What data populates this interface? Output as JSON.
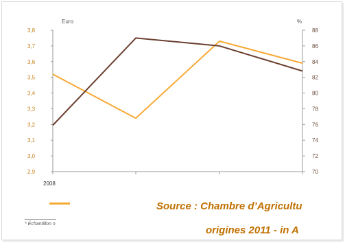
{
  "chart_data": {
    "type": "line",
    "x": [
      "2008",
      "",
      "",
      ""
    ],
    "ylabel_left": "Euro",
    "ylabel_right": "%",
    "ylim_left": [
      2.9,
      3.8
    ],
    "ylim_right": [
      70,
      88
    ],
    "yticks_left": [
      "3,8",
      "3,7",
      "3,6",
      "3,5",
      "3,4",
      "3,3",
      "3,2",
      "3,1",
      "3,0",
      "2,9"
    ],
    "yticks_right": [
      "88",
      "86",
      "84",
      "82",
      "80",
      "78",
      "76",
      "74",
      "72",
      "70"
    ],
    "series": [
      {
        "axis": "left",
        "color": "#f7a935",
        "values": [
          3.52,
          3.24,
          3.73,
          3.59
        ]
      },
      {
        "axis": "right",
        "color": "#6b3f30",
        "values": [
          75.9,
          87.0,
          86.0,
          82.8
        ]
      }
    ],
    "grid": false
  },
  "source_line1": "Source : Chambre d’Agricultu",
  "source_line2": "origines 2011 - in A",
  "footnote": "* Échantillon n"
}
